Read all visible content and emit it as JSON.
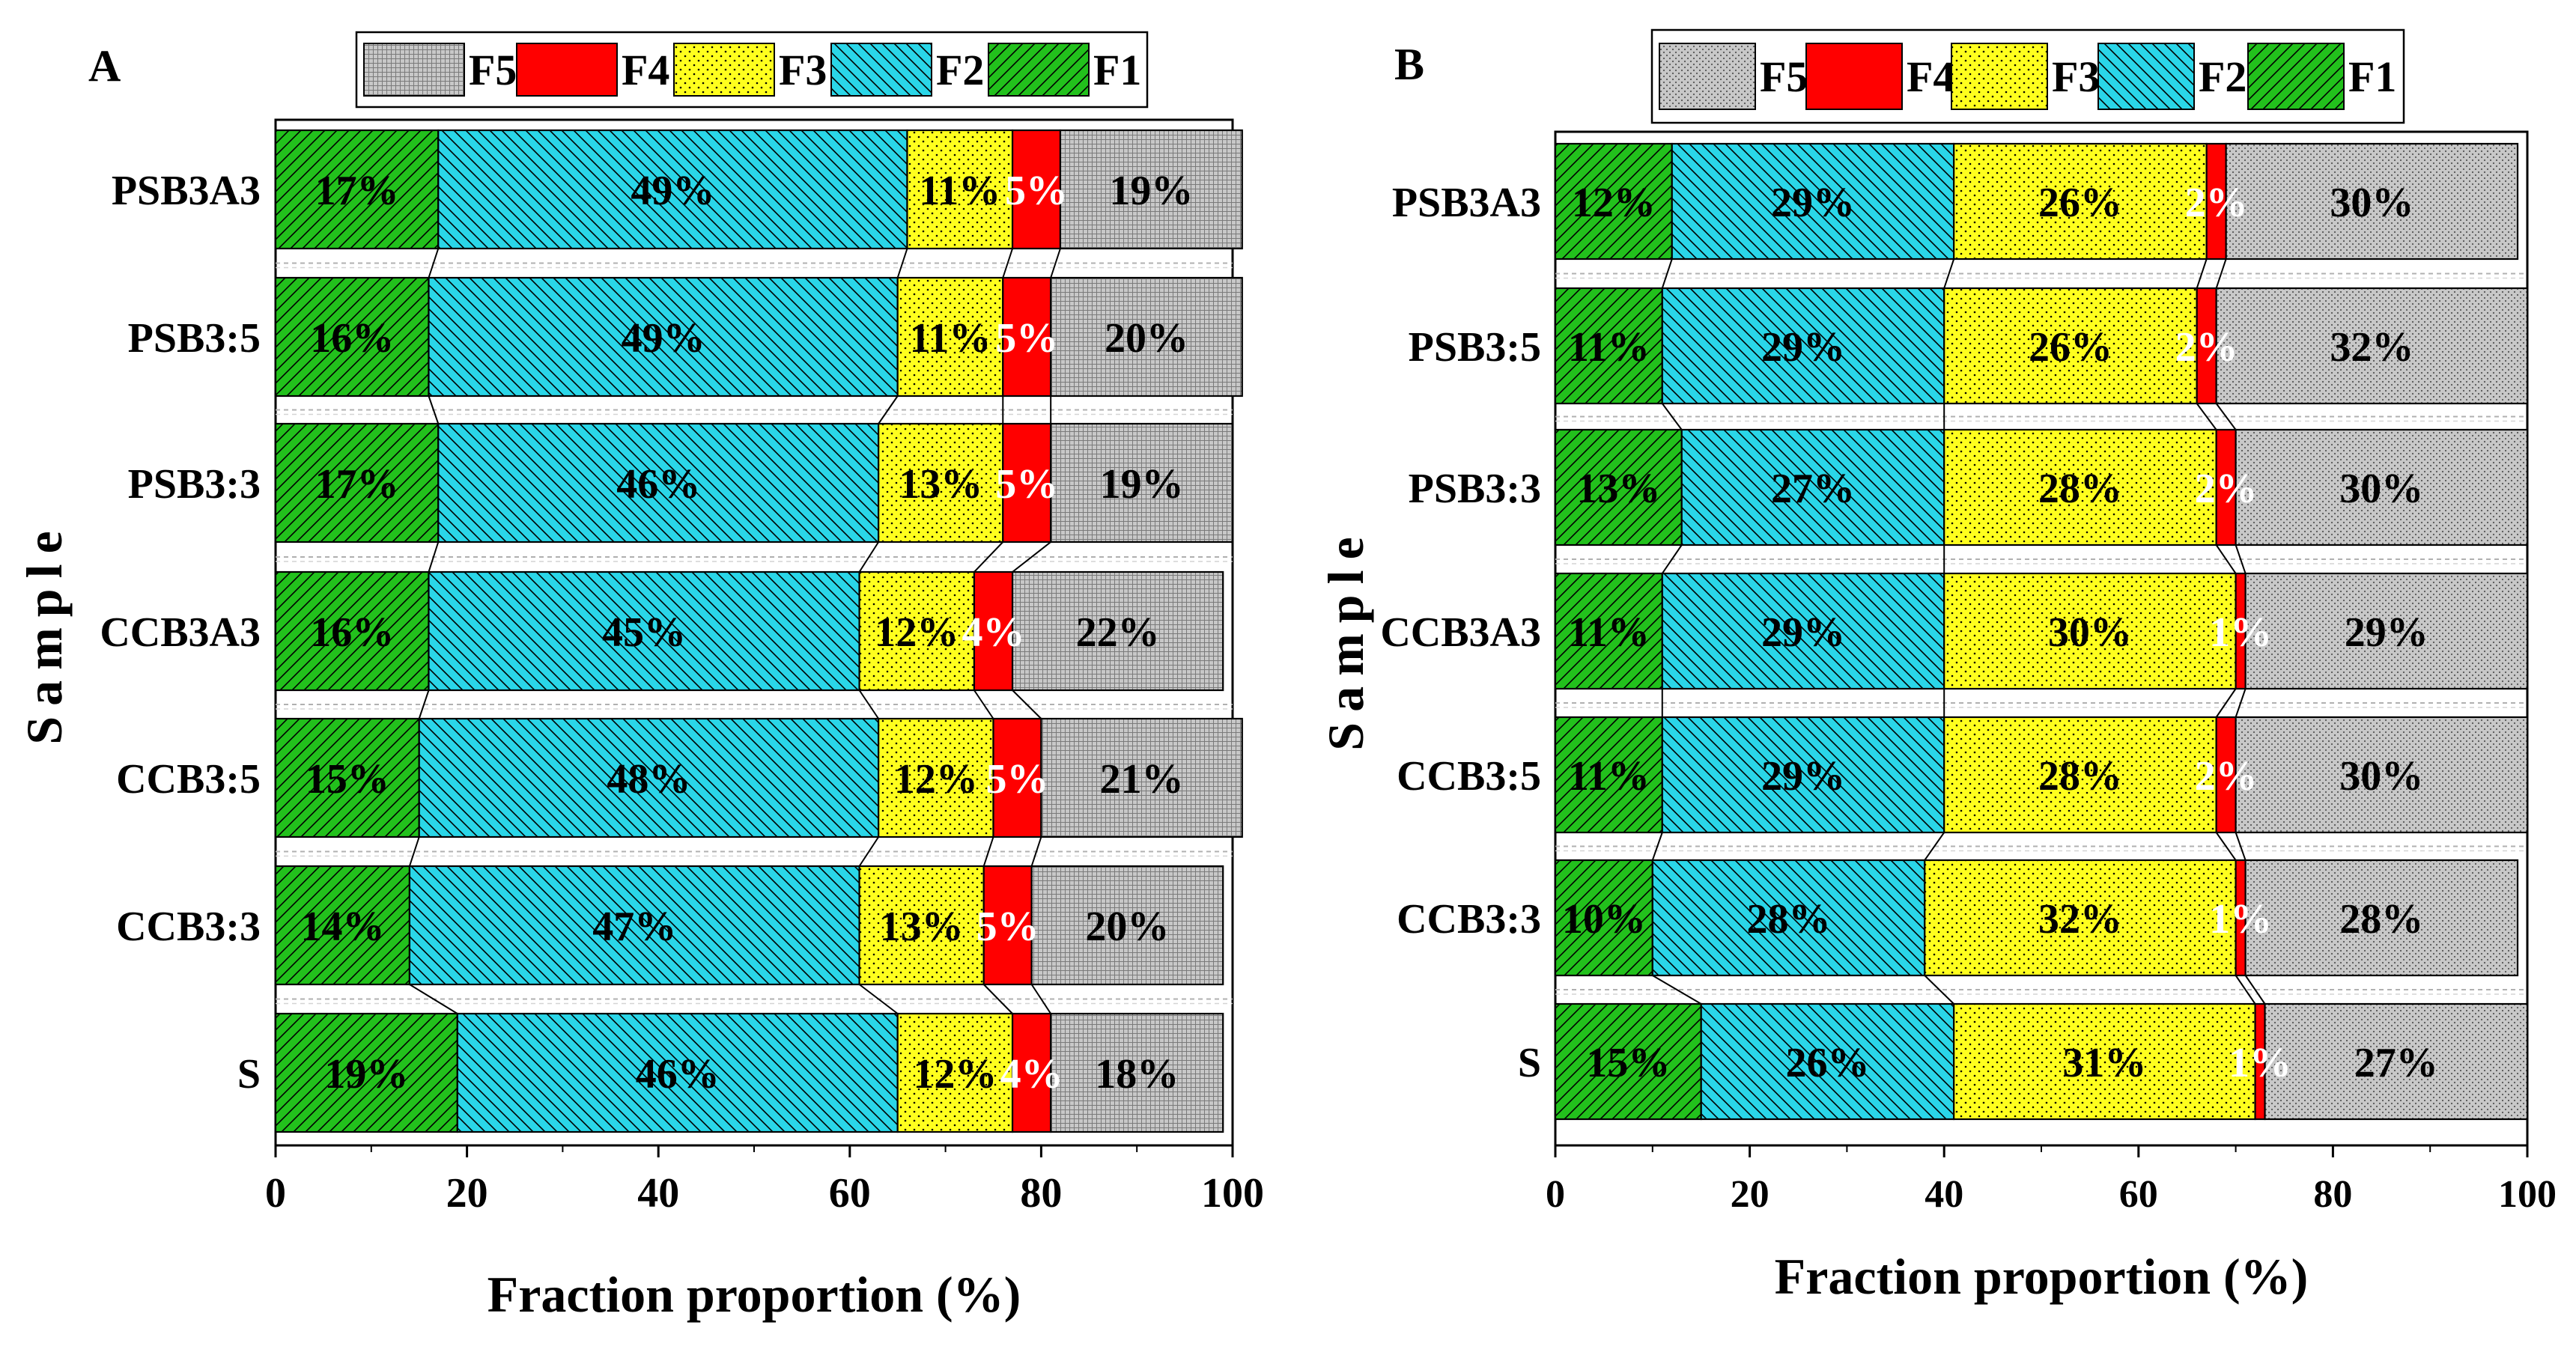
{
  "chart_data": [
    {
      "panel_label": "A",
      "type": "stacked-bar-horizontal",
      "xlabel": "Fraction proportion (%)",
      "ylabel": "Sample",
      "xlim": [
        0,
        100
      ],
      "xticks": [
        "0",
        "20",
        "40",
        "60",
        "80",
        "100"
      ],
      "categories": [
        "PSB3A3",
        "PSB3:5",
        "PSB3:3",
        "CCB3A3",
        "CCB3:5",
        "CCB3:3",
        "S"
      ],
      "legend": [
        "F5",
        "F4",
        "F3",
        "F2",
        "F1"
      ],
      "series": [
        {
          "name": "F1",
          "values": [
            17,
            16,
            17,
            16,
            15,
            14,
            19
          ],
          "labels": [
            "17%",
            "16%",
            "17%",
            "16%",
            "15%",
            "14%",
            "19%"
          ]
        },
        {
          "name": "F2",
          "values": [
            49,
            49,
            46,
            45,
            48,
            47,
            46
          ],
          "labels": [
            "49%",
            "49%",
            "46%",
            "45%",
            "48%",
            "47%",
            "46%"
          ]
        },
        {
          "name": "F3",
          "values": [
            11,
            11,
            13,
            12,
            12,
            13,
            12
          ],
          "labels": [
            "11%",
            "11%",
            "13%",
            "12%",
            "12%",
            "13%",
            "12%"
          ]
        },
        {
          "name": "F4",
          "values": [
            5,
            5,
            5,
            4,
            5,
            5,
            4
          ],
          "labels": [
            "5%",
            "5%",
            "5%",
            "4%",
            "5%",
            "5%",
            "4%"
          ]
        },
        {
          "name": "F5",
          "values": [
            19,
            20,
            19,
            22,
            21,
            20,
            18
          ],
          "labels": [
            "19%",
            "20%",
            "19%",
            "22%",
            "21%",
            "20%",
            "18%"
          ]
        }
      ]
    },
    {
      "panel_label": "B",
      "type": "stacked-bar-horizontal",
      "xlabel": "Fraction proportion (%)",
      "ylabel": "Sample",
      "xlim": [
        0,
        100
      ],
      "xticks": [
        "0",
        "20",
        "40",
        "60",
        "80",
        "100"
      ],
      "categories": [
        "PSB3A3",
        "PSB3:5",
        "PSB3:3",
        "CCB3A3",
        "CCB3:5",
        "CCB3:3",
        "S"
      ],
      "legend": [
        "F5",
        "F4",
        "F3",
        "F2",
        "F1"
      ],
      "series": [
        {
          "name": "F1",
          "values": [
            12,
            11,
            13,
            11,
            11,
            10,
            15
          ],
          "labels": [
            "12%",
            "11%",
            "13%",
            "11%",
            "11%",
            "10%",
            "15%"
          ]
        },
        {
          "name": "F2",
          "values": [
            29,
            29,
            27,
            29,
            29,
            28,
            26
          ],
          "labels": [
            "29%",
            "29%",
            "27%",
            "29%",
            "29%",
            "28%",
            "26%"
          ]
        },
        {
          "name": "F3",
          "values": [
            26,
            26,
            28,
            30,
            28,
            32,
            31
          ],
          "labels": [
            "26%",
            "26%",
            "28%",
            "30%",
            "28%",
            "32%",
            "31%"
          ]
        },
        {
          "name": "F4",
          "values": [
            2,
            2,
            2,
            1,
            2,
            1,
            1
          ],
          "labels": [
            "2%",
            "2%",
            "2%",
            "1%",
            "2%",
            "1%",
            "1%"
          ]
        },
        {
          "name": "F5",
          "values": [
            30,
            32,
            30,
            29,
            30,
            28,
            27
          ],
          "labels": [
            "30%",
            "32%",
            "30%",
            "29%",
            "30%",
            "28%",
            "27%"
          ]
        }
      ]
    }
  ],
  "colors": {
    "F1": "#22c11c",
    "F2": "#2ad6e8",
    "F3": "#ffff1e",
    "F4": "#ff0000",
    "F5": "#c8c8c8"
  }
}
